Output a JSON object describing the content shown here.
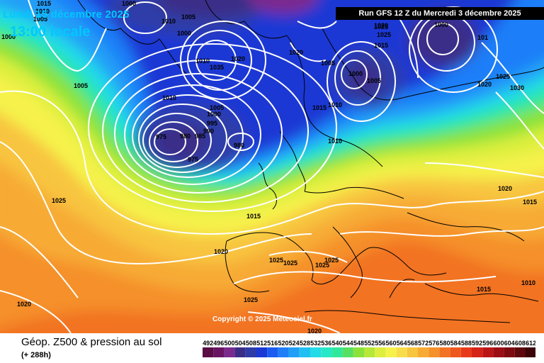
{
  "header": {
    "date_line": "Lundi 15 décembre 2025",
    "time_line": "13:00 locale",
    "run_info": "Run GFS 12 Z du Mercredi 3 décembre 2025"
  },
  "copyright": "Copyright © 2025 Meteociel.fr",
  "footer": {
    "title": "Géop. Z500 & pression au sol",
    "lead": "(+ 288h)"
  },
  "colorbar": {
    "labels": [
      "492",
      "496",
      "500",
      "504",
      "508",
      "512",
      "516",
      "520",
      "524",
      "528",
      "532",
      "536",
      "540",
      "544",
      "548",
      "552",
      "556",
      "560",
      "564",
      "568",
      "572",
      "576",
      "580",
      "584",
      "588",
      "592",
      "596",
      "600",
      "604",
      "608",
      "612"
    ],
    "colors": [
      "#5b0d46",
      "#6a1463",
      "#7b2a8e",
      "#3a2d88",
      "#2d3ca8",
      "#1a38d4",
      "#1b5cf0",
      "#1f7ef8",
      "#209ff7",
      "#22c0f2",
      "#24dbe8",
      "#27e8c6",
      "#2fe89b",
      "#56e062",
      "#8be23a",
      "#b6e83a",
      "#dcef3e",
      "#f6f24c",
      "#f8dd4a",
      "#f8c53f",
      "#f7ab34",
      "#f5902a",
      "#f27323",
      "#ee571d",
      "#e83a1a",
      "#d62318",
      "#bb1617",
      "#9b0e14",
      "#7c0a10",
      "#5e070c",
      "#3b0407"
    ]
  },
  "isobar_labels": [
    {
      "id": "l1",
      "text": "1015"
    },
    {
      "id": "l2",
      "text": "1010"
    },
    {
      "id": "l3",
      "text": "1005"
    },
    {
      "id": "l4",
      "text": "1000"
    },
    {
      "id": "l5",
      "text": "1000"
    },
    {
      "id": "l6",
      "text": "1010"
    },
    {
      "id": "l7",
      "text": "1005"
    },
    {
      "id": "l8",
      "text": "1000"
    },
    {
      "id": "l9",
      "text": "1010"
    },
    {
      "id": "l10",
      "text": "1035"
    },
    {
      "id": "l11",
      "text": "1020"
    },
    {
      "id": "l12",
      "text": "1020"
    },
    {
      "id": "l13",
      "text": "1025"
    },
    {
      "id": "l14",
      "text": "1025"
    },
    {
      "id": "l15",
      "text": "1020"
    },
    {
      "id": "l16",
      "text": "1015"
    },
    {
      "id": "l17",
      "text": "1000"
    },
    {
      "id": "l18",
      "text": "101"
    },
    {
      "id": "l19",
      "text": "1005"
    },
    {
      "id": "l20",
      "text": "1000"
    },
    {
      "id": "l21",
      "text": "1005"
    },
    {
      "id": "l22",
      "text": "1025"
    },
    {
      "id": "l23",
      "text": "1030"
    },
    {
      "id": "l24",
      "text": "1020"
    },
    {
      "id": "l25",
      "text": "1010"
    },
    {
      "id": "l26",
      "text": "1005"
    },
    {
      "id": "l27",
      "text": "1000"
    },
    {
      "id": "l28",
      "text": "995"
    },
    {
      "id": "l29",
      "text": "990"
    },
    {
      "id": "l30",
      "text": "985"
    },
    {
      "id": "l31",
      "text": "980"
    },
    {
      "id": "l32",
      "text": "975"
    },
    {
      "id": "l33",
      "text": "980"
    },
    {
      "id": "l34",
      "text": "975"
    },
    {
      "id": "l35",
      "text": "1015"
    },
    {
      "id": "l36",
      "text": "1010"
    },
    {
      "id": "l37",
      "text": "1010"
    },
    {
      "id": "l38",
      "text": "1005"
    },
    {
      "id": "l39",
      "text": "1025"
    },
    {
      "id": "l40",
      "text": "1020"
    },
    {
      "id": "l41",
      "text": "1015"
    },
    {
      "id": "l42",
      "text": "1020"
    },
    {
      "id": "l43",
      "text": "1025"
    },
    {
      "id": "l44",
      "text": "1025"
    },
    {
      "id": "l45",
      "text": "1025"
    },
    {
      "id": "l46",
      "text": "1025"
    },
    {
      "id": "l47",
      "text": "1020"
    },
    {
      "id": "l48",
      "text": "1025"
    },
    {
      "id": "l49",
      "text": "1020"
    },
    {
      "id": "l50",
      "text": "1015"
    },
    {
      "id": "l51",
      "text": "1015"
    },
    {
      "id": "l52",
      "text": "1010"
    },
    {
      "id": "l53",
      "text": "1020"
    }
  ]
}
